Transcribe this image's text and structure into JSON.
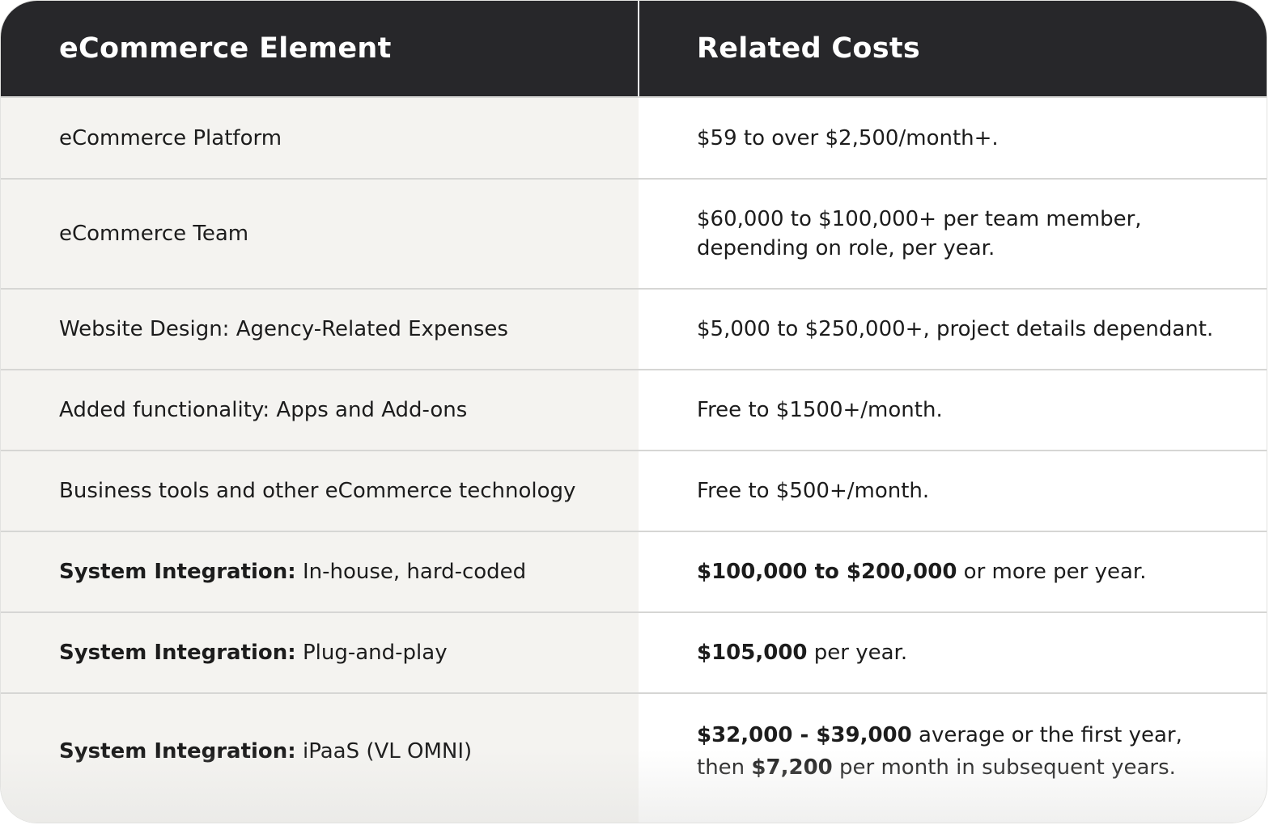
{
  "table": {
    "headers": [
      "eCommerce Element",
      "Related Costs"
    ],
    "rows": [
      {
        "element": "eCommerce Platform",
        "cost": "$59 to over $2,500/month+."
      },
      {
        "element": "eCommerce Team",
        "cost_line1": "$60,000 to $100,000+ per team member,",
        "cost_line2": "depending on role, per year."
      },
      {
        "element": "Website Design: Agency-Related Expenses",
        "cost": "$5,000 to $250,000+, project details dependant."
      },
      {
        "element": "Added functionality: Apps and Add-ons",
        "cost": "Free to $1500+/month."
      },
      {
        "element": "Business tools and other eCommerce technology",
        "cost": "Free to $500+/month."
      },
      {
        "element_bold": "System Integration:",
        "element_rest": " In-house, hard-coded",
        "cost_bold": "$100,000 to $200,000",
        "cost_rest": " or more per year."
      },
      {
        "element_bold": "System Integration:",
        "element_rest": " Plug-and-play",
        "cost_bold": "$105,000",
        "cost_rest": " per year."
      },
      {
        "element_bold": "System Integration:",
        "element_rest": " iPaaS (VL OMNI)",
        "cost_bold1": "$32,000 - $39,000",
        "cost_rest1": " average or the first year,",
        "cost_pre2": "then ",
        "cost_bold2": "$7,200",
        "cost_rest2": " per month in subsequent years."
      }
    ]
  },
  "colors": {
    "header_bg": "#27272a",
    "header_text": "#ffffff",
    "left_column_bg": "#f4f3f0",
    "right_column_bg": "#ffffff",
    "row_divider": "#d6d6d4",
    "body_text": "#1c1c1c"
  }
}
